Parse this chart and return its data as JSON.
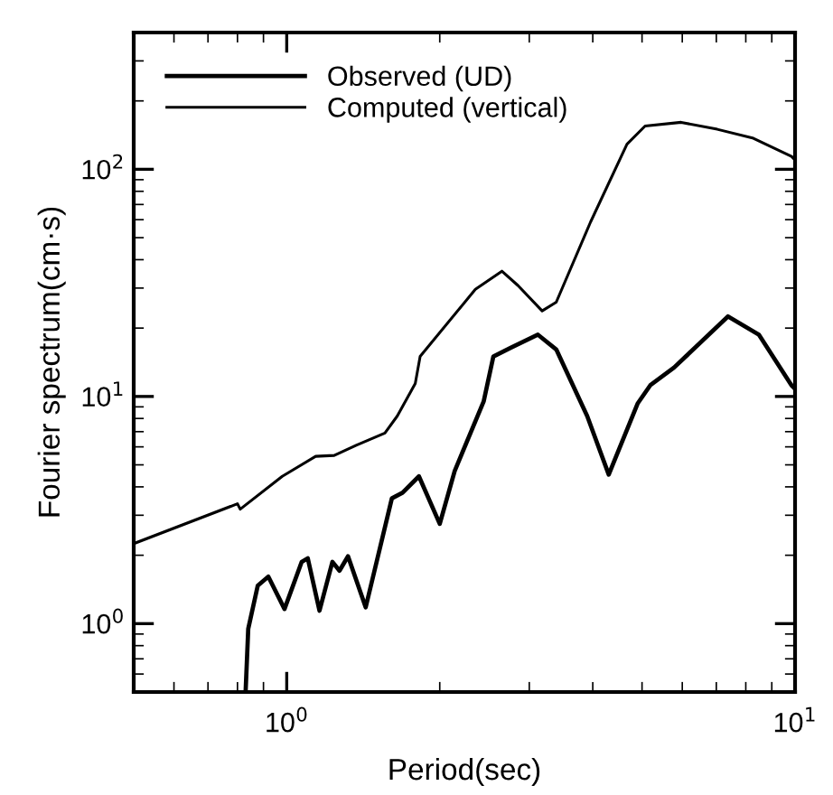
{
  "chart_data": {
    "type": "line",
    "xlabel": "Period(sec)",
    "ylabel": "Fourier spectrum(cm·s)",
    "log": "xy",
    "grid": false,
    "legend": "top left",
    "line_style": "solid",
    "marker": "none",
    "xlim": [
      0.5,
      10
    ],
    "ylim": [
      0.5,
      400
    ],
    "xticks": [
      {
        "value": 1,
        "label": "10$^{0}$"
      },
      {
        "value": 10,
        "label": "10$^{1}$"
      }
    ],
    "yticks": [
      {
        "value": 1,
        "label": "10$^{0}$"
      },
      {
        "value": 10,
        "label": "10$^{1}$"
      },
      {
        "value": 100,
        "label": "10$^{2}$"
      }
    ],
    "series": [
      {
        "name": "Observed (UD)",
        "color": "#000000",
        "x": [
          0.83,
          0.84,
          0.877,
          0.92,
          0.99,
          1.07,
          1.1,
          1.16,
          1.23,
          1.27,
          1.32,
          1.43,
          1.61,
          1.69,
          1.82,
          2.0,
          2.14,
          2.44,
          2.55,
          2.76,
          3.12,
          3.39,
          3.9,
          4.3,
          4.9,
          5.19,
          5.78,
          7.38,
          8.49,
          9.84,
          10
        ],
        "values": [
          0.5,
          0.95,
          1.47,
          1.61,
          1.16,
          1.87,
          1.94,
          1.14,
          1.87,
          1.71,
          1.98,
          1.18,
          3.56,
          3.77,
          4.45,
          2.75,
          4.7,
          9.5,
          15,
          16.4,
          18.7,
          16.1,
          8.2,
          4.53,
          9.3,
          11.2,
          13.4,
          22.5,
          18.7,
          11.2,
          10.8
        ]
      },
      {
        "name": "Computed (vertical)",
        "color": "#000000",
        "x": [
          0.5,
          0.8,
          0.81,
          0.98,
          1.14,
          1.24,
          1.37,
          1.56,
          1.65,
          1.79,
          1.83,
          2.35,
          2.65,
          2.85,
          3.18,
          3.39,
          3.96,
          4.67,
          5.07,
          5.97,
          7.03,
          8.28,
          9.84,
          10
        ],
        "values": [
          2.25,
          3.37,
          3.19,
          4.45,
          5.45,
          5.5,
          6.1,
          6.9,
          8.2,
          11.4,
          15,
          29.6,
          35.6,
          30.8,
          23.8,
          26,
          58.6,
          129,
          155,
          161,
          150,
          137,
          114,
          110
        ]
      }
    ]
  }
}
